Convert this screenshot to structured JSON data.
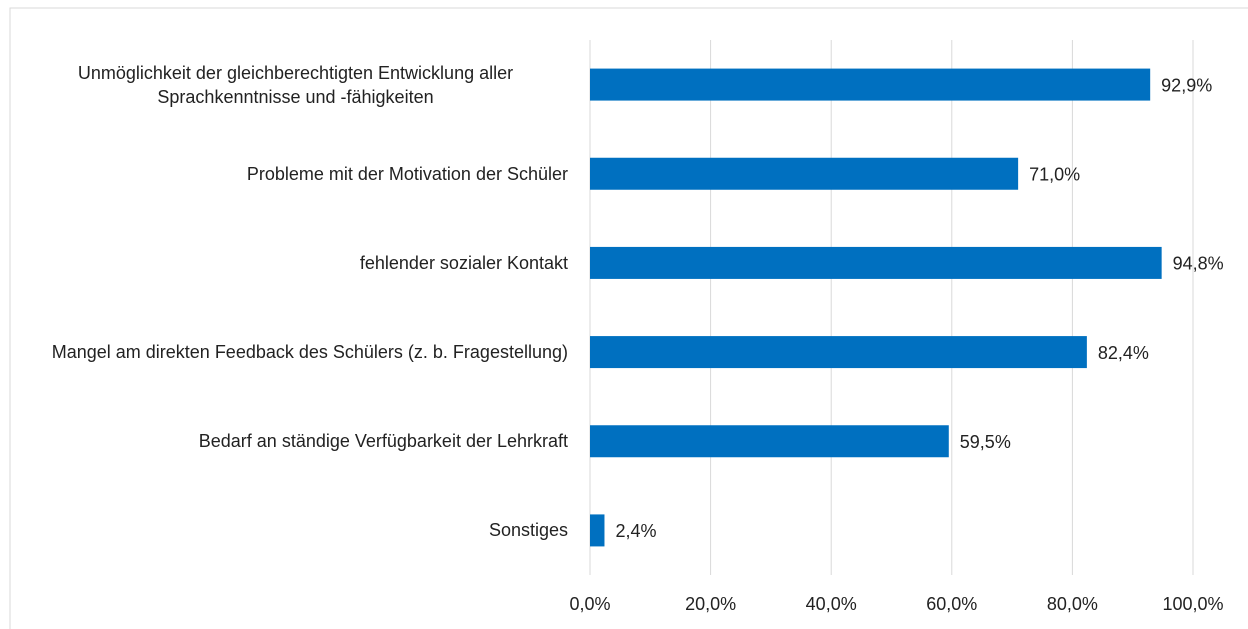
{
  "chart_data": {
    "type": "bar",
    "orientation": "horizontal",
    "categories": [
      "Unmöglichkeit der gleichberechtigten Entwicklung aller Sprachkenntnisse und -fähigkeiten",
      "Probleme mit der Motivation der Schüler",
      "fehlender sozialer Kontakt",
      "Mangel am direkten Feedback des Schülers (z. b. Fragestellung)",
      "Bedarf an ständige Verfügbarkeit der Lehrkraft",
      "Sonstiges"
    ],
    "values": [
      92.9,
      71.0,
      94.8,
      82.4,
      59.5,
      2.4
    ],
    "value_labels": [
      "92,9%",
      "71,0%",
      "94,8%",
      "82,4%",
      "59,5%",
      "2,4%"
    ],
    "color": "#0070c0",
    "xlim": [
      0,
      100
    ],
    "xticks": [
      {
        "value": 0,
        "label": "0,0%"
      },
      {
        "value": 20,
        "label": "20,0%"
      },
      {
        "value": 40,
        "label": "40,0%"
      },
      {
        "value": 60,
        "label": "60,0%"
      },
      {
        "value": 80,
        "label": "80,0%"
      },
      {
        "value": 100,
        "label": "100,0%"
      }
    ],
    "grid": true
  }
}
